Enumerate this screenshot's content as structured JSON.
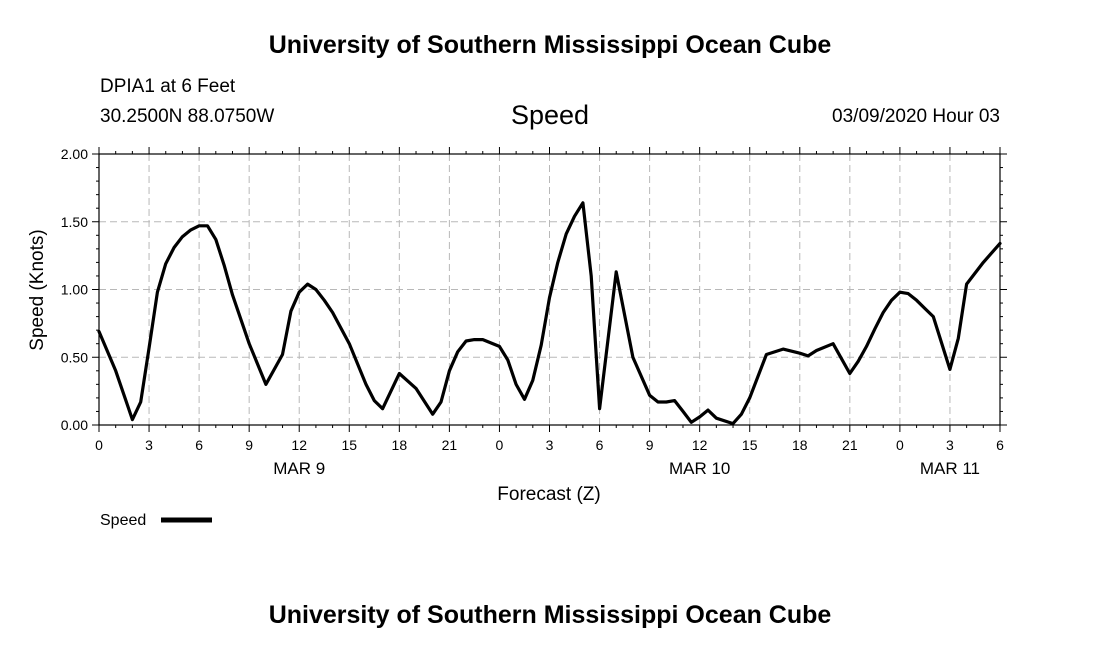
{
  "header": {
    "title": "University of Southern Mississippi Ocean Cube",
    "station": "DPIA1 at 6 Feet",
    "coords": "30.2500N 88.0750W",
    "variable": "Speed",
    "timestamp": "03/09/2020 Hour 03"
  },
  "footer": {
    "title": "University of Southern Mississippi Ocean Cube"
  },
  "chart_data": {
    "type": "line",
    "xlabel": "Forecast (Z)",
    "ylabel": "Speed (Knots)",
    "x_unit": "hours from 0Z MAR 9",
    "xlim": [
      0,
      54
    ],
    "ylim": [
      0,
      2
    ],
    "x_ticks": [
      0,
      3,
      6,
      9,
      12,
      15,
      18,
      21,
      24,
      27,
      30,
      33,
      36,
      39,
      42,
      45,
      48,
      51,
      54
    ],
    "x_tick_labels": [
      "0",
      "3",
      "6",
      "9",
      "12",
      "15",
      "18",
      "21",
      "0",
      "3",
      "6",
      "9",
      "12",
      "15",
      "18",
      "21",
      "0",
      "3",
      "6"
    ],
    "y_ticks": [
      0,
      0.5,
      1.0,
      1.5,
      2.0
    ],
    "y_tick_labels": [
      "0.00",
      "0.50",
      "1.00",
      "1.50",
      "2.00"
    ],
    "date_labels": [
      {
        "label": "MAR 9",
        "x": 12
      },
      {
        "label": "MAR 10",
        "x": 36
      },
      {
        "label": "MAR 11",
        "x": 51
      }
    ],
    "grid": true,
    "legend": {
      "position": "bottom-left",
      "entries": [
        "Speed"
      ]
    },
    "series": [
      {
        "name": "Speed",
        "color": "#000000",
        "x": [
          0,
          1,
          2,
          2.5,
          3,
          3.5,
          4,
          4.5,
          5,
          5.5,
          6,
          6.5,
          7,
          7.5,
          8,
          9,
          10,
          11,
          11.5,
          12,
          12.5,
          13,
          13.5,
          14,
          15,
          16,
          16.5,
          17,
          18,
          19,
          20,
          20.5,
          21,
          21.5,
          22,
          22.5,
          23,
          24,
          24.5,
          25,
          25.5,
          26,
          26.5,
          27,
          27.5,
          28,
          28.5,
          29,
          29.5,
          30,
          31,
          32,
          33,
          33.5,
          34,
          34.5,
          35,
          35.5,
          36,
          36.5,
          37,
          38,
          38.5,
          39,
          40,
          41,
          42,
          42.5,
          43,
          44,
          45,
          45.5,
          46,
          46.5,
          47,
          47.5,
          48,
          48.5,
          49,
          49.5,
          50,
          51,
          51.5,
          52,
          53,
          54
        ],
        "y": [
          0.69,
          0.4,
          0.04,
          0.17,
          0.57,
          0.98,
          1.19,
          1.31,
          1.39,
          1.44,
          1.47,
          1.47,
          1.37,
          1.18,
          0.96,
          0.6,
          0.3,
          0.52,
          0.84,
          0.98,
          1.04,
          1.0,
          0.92,
          0.83,
          0.6,
          0.3,
          0.18,
          0.12,
          0.38,
          0.27,
          0.08,
          0.17,
          0.4,
          0.54,
          0.62,
          0.63,
          0.63,
          0.58,
          0.48,
          0.3,
          0.19,
          0.33,
          0.59,
          0.94,
          1.2,
          1.41,
          1.54,
          1.64,
          1.1,
          0.12,
          1.13,
          0.5,
          0.22,
          0.17,
          0.17,
          0.18,
          0.1,
          0.02,
          0.06,
          0.11,
          0.05,
          0.01,
          0.08,
          0.2,
          0.52,
          0.56,
          0.53,
          0.51,
          0.55,
          0.6,
          0.38,
          0.47,
          0.58,
          0.71,
          0.83,
          0.92,
          0.98,
          0.97,
          0.92,
          0.86,
          0.8,
          0.41,
          0.64,
          1.04,
          1.2,
          1.34
        ]
      }
    ]
  }
}
